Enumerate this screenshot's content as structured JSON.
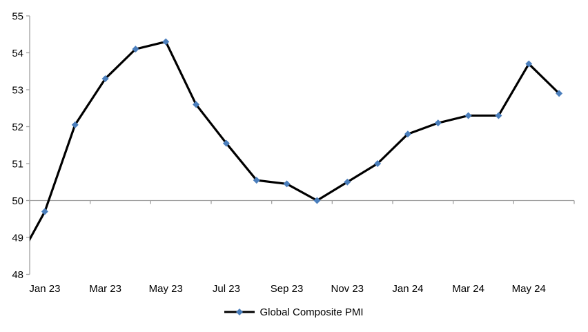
{
  "chart_data": {
    "type": "line",
    "title": "",
    "legend": {
      "label": "Global Composite PMI",
      "position": "bottom"
    },
    "categories": [
      "Jan 23",
      "Feb 23",
      "Mar 23",
      "Apr 23",
      "May 23",
      "Jun 23",
      "Jul 23",
      "Aug 23",
      "Sep 23",
      "Oct 23",
      "Nov 23",
      "Dec 23",
      "Jan 24",
      "Feb 24",
      "Mar 24",
      "Apr 24",
      "May 24",
      "Jun 24"
    ],
    "values": [
      49.7,
      52.05,
      53.3,
      54.1,
      54.3,
      52.6,
      51.55,
      50.55,
      50.45,
      50.0,
      50.5,
      51.0,
      51.8,
      52.1,
      52.3,
      52.3,
      53.7,
      52.9
    ],
    "lead_in": {
      "category": "Dec 22",
      "value": 48.2,
      "clipped_at_left_axis": true
    },
    "x_tick_labels": [
      "Jan 23",
      "Mar 23",
      "May 23",
      "Jul 23",
      "Sep 23",
      "Nov 23",
      "Jan 24",
      "Mar 24",
      "May 24"
    ],
    "x_label_every_n_categories": 2,
    "y_ticks": [
      48,
      49,
      50,
      51,
      52,
      53,
      54,
      55
    ],
    "ylim": [
      48,
      55
    ],
    "x_axis_crosses_at": 50,
    "grid": "none",
    "marker_shape": "diamond",
    "colors": {
      "line": "#000000",
      "marker": "#4a7ebc",
      "axis": "#a0a0a0",
      "text": "#000000",
      "background": "#ffffff"
    }
  }
}
